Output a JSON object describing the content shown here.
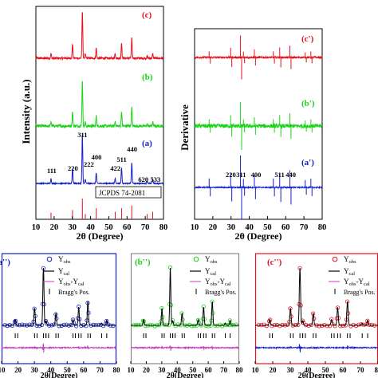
{
  "colors": {
    "red": "#e8101a",
    "green": "#19d419",
    "blue": "#1520c8",
    "black": "#000000",
    "magenta": "#c040c0",
    "gray": "#888888"
  },
  "chart_data": [
    {
      "type": "line",
      "panel": "top-left",
      "xlabel": "2θ (Degree)",
      "ylabel": "Intensity (a.u.)",
      "xlim": [
        10,
        80
      ],
      "xticks": [
        "10",
        "20",
        "30",
        "40",
        "50",
        "60",
        "70",
        "80"
      ],
      "series": [
        {
          "name": "(c)",
          "color": "red"
        },
        {
          "name": "(b)",
          "color": "green"
        },
        {
          "name": "(a)",
          "color": "blue"
        }
      ],
      "peak_positions": [
        18.3,
        30.1,
        35.5,
        37.1,
        43.1,
        53.5,
        57.0,
        62.6,
        71.0,
        74.1
      ],
      "hkl_labels": [
        {
          "label": "111",
          "x": 18.3
        },
        {
          "label": "220",
          "x": 30.1
        },
        {
          "label": "311",
          "x": 35.5
        },
        {
          "label": "222",
          "x": 37.1
        },
        {
          "label": "400",
          "x": 43.1
        },
        {
          "label": "422",
          "x": 53.5
        },
        {
          "label": "511",
          "x": 57.0
        },
        {
          "label": "440",
          "x": 62.6
        },
        {
          "label": "620",
          "x": 71.0
        },
        {
          "label": "533",
          "x": 74.1
        }
      ],
      "reference": "JCPDS 74-2081"
    },
    {
      "type": "line",
      "panel": "top-right",
      "xlabel": "2θ (Degree)",
      "ylabel": "Derivative",
      "xlim": [
        10,
        80
      ],
      "xticks": [
        "10",
        "20",
        "30",
        "40",
        "50",
        "60",
        "70",
        "80"
      ],
      "series": [
        {
          "name": "(c')",
          "color": "red"
        },
        {
          "name": "(b')",
          "color": "green"
        },
        {
          "name": "(a')",
          "color": "blue"
        }
      ],
      "hkl_labels": [
        {
          "label": "220",
          "x": 30.1
        },
        {
          "label": "311",
          "x": 35.5
        },
        {
          "label": "400",
          "x": 43.1
        },
        {
          "label": "511",
          "x": 57.0
        },
        {
          "label": "440",
          "x": 62.6
        }
      ]
    },
    {
      "type": "line",
      "panel": "bottom-1",
      "tag": "(a'')",
      "xlabel": "2θ(Degree)",
      "xlim": [
        10,
        80
      ],
      "xticks": [
        "10",
        "20",
        "30",
        "40",
        "50",
        "60",
        "70",
        "80"
      ],
      "legend": [
        "Y",
        "Y",
        "Y -Y",
        "Bragg's Pos."
      ]
    },
    {
      "type": "line",
      "panel": "bottom-2",
      "tag": "(b'')",
      "xlabel": "2θ(Degree)",
      "xlim": [
        10,
        80
      ],
      "xticks": [
        "10",
        "20",
        "30",
        "40",
        "50",
        "60",
        "70",
        "80"
      ],
      "legend": [
        "Y",
        "Y",
        "Y -Y",
        "Bragg's Pos."
      ]
    },
    {
      "type": "line",
      "panel": "bottom-3",
      "tag": "(c'')",
      "xlabel": "2θ(Degree)",
      "xlim": [
        10,
        80
      ],
      "xticks": [
        "10",
        "20",
        "30",
        "40",
        "50",
        "60",
        "70",
        "80"
      ],
      "legend": [
        "Y",
        "Y",
        "Y -Y",
        "Bragg's Pos."
      ]
    }
  ]
}
